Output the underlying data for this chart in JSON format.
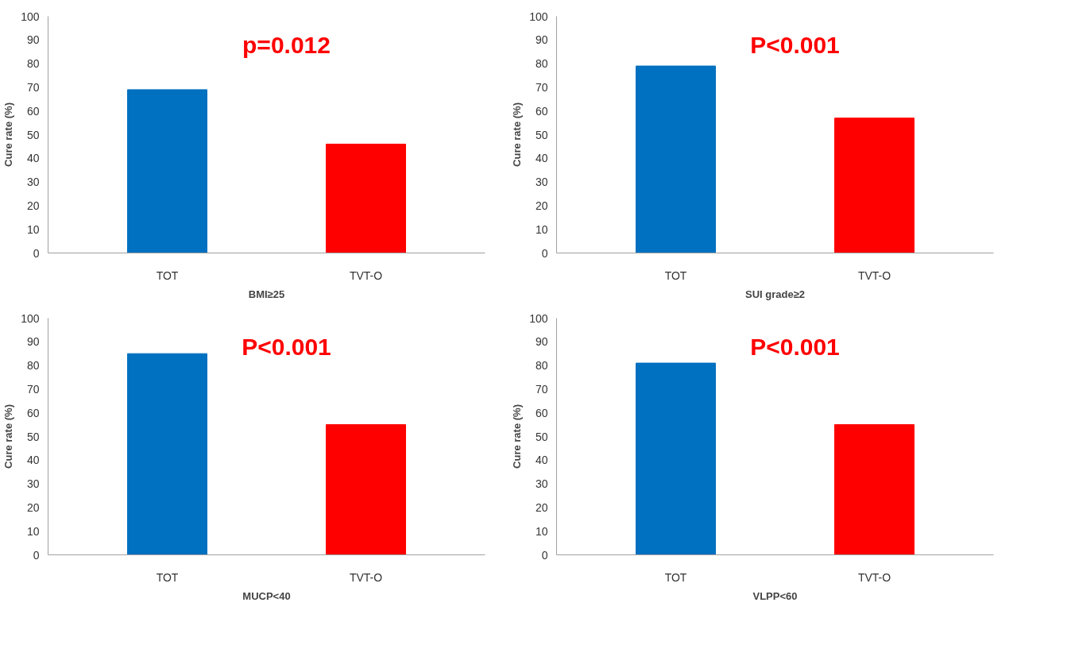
{
  "chart_data": [
    {
      "type": "bar",
      "categories": [
        "TOT",
        "TVT-O"
      ],
      "values": [
        69,
        46
      ],
      "colors": [
        "#0070c0",
        "#ff0000"
      ],
      "ylabel": "Cure rate (%)",
      "xlabel": "BMI≥25",
      "annotations": [
        "p=0.012"
      ],
      "ylim": [
        0,
        100
      ],
      "yticks": [
        0,
        10,
        20,
        30,
        40,
        50,
        60,
        70,
        80,
        90,
        100
      ]
    },
    {
      "type": "bar",
      "categories": [
        "TOT",
        "TVT-O"
      ],
      "values": [
        79,
        57
      ],
      "colors": [
        "#0070c0",
        "#ff0000"
      ],
      "ylabel": "Cure rate (%)",
      "xlabel": "SUI grade≥2",
      "annotations": [
        "P<0.001"
      ],
      "ylim": [
        0,
        100
      ],
      "yticks": [
        0,
        10,
        20,
        30,
        40,
        50,
        60,
        70,
        80,
        90,
        100
      ]
    },
    {
      "type": "bar",
      "categories": [
        "TOT",
        "TVT-O"
      ],
      "values": [
        85,
        55
      ],
      "colors": [
        "#0070c0",
        "#ff0000"
      ],
      "ylabel": "Cure rate (%)",
      "xlabel": "MUCP<40",
      "annotations": [
        "P<0.001"
      ],
      "ylim": [
        0,
        100
      ],
      "yticks": [
        0,
        10,
        20,
        30,
        40,
        50,
        60,
        70,
        80,
        90,
        100
      ]
    },
    {
      "type": "bar",
      "categories": [
        "TOT",
        "TVT-O"
      ],
      "values": [
        81,
        55
      ],
      "colors": [
        "#0070c0",
        "#ff0000"
      ],
      "ylabel": "Cure rate (%)",
      "xlabel": "VLPP<60",
      "annotations": [
        "P<0.001"
      ],
      "ylim": [
        0,
        100
      ],
      "yticks": [
        0,
        10,
        20,
        30,
        40,
        50,
        60,
        70,
        80,
        90,
        100
      ]
    }
  ]
}
